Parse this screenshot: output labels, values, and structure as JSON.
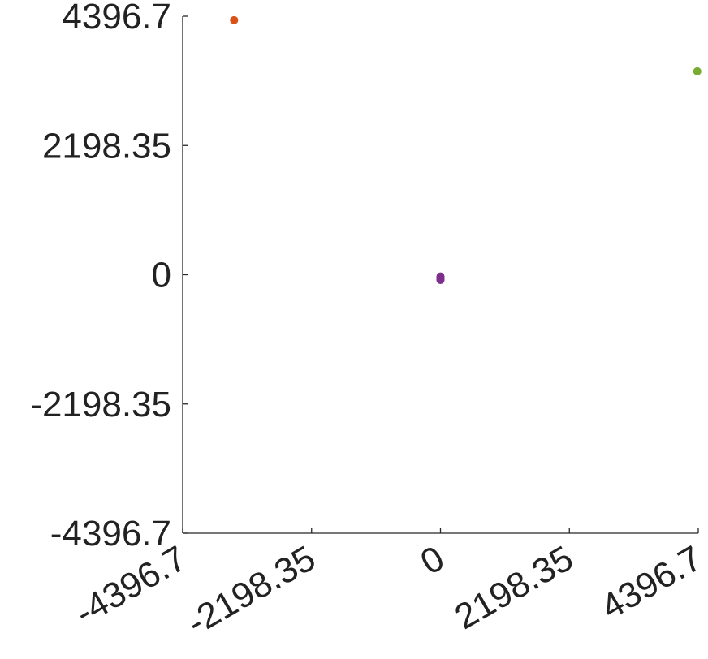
{
  "chart_data": {
    "type": "scatter",
    "title": "",
    "xlabel": "",
    "ylabel": "",
    "xlim": [
      -4396.7,
      4396.7
    ],
    "ylim": [
      -4396.7,
      4396.7
    ],
    "xticks": [
      -4396.7,
      -2198.35,
      0,
      2198.35,
      4396.7
    ],
    "xtick_labels": [
      "-4396.7",
      "-2198.35",
      "0",
      "2198.35",
      "4396.7"
    ],
    "yticks": [
      -4396.7,
      -2198.35,
      0,
      2198.35,
      4396.7
    ],
    "ytick_labels": [
      "-4396.7",
      "-2198.35",
      "0",
      "2198.35",
      "4396.7"
    ],
    "grid": false,
    "legend": "none",
    "series": [
      {
        "color": "#D95319",
        "points": [
          [
            -3520,
            4330
          ]
        ]
      },
      {
        "color": "#77AC30",
        "points": [
          [
            4380,
            3460
          ]
        ]
      },
      {
        "color": "#7E2F8E",
        "points": [
          [
            0,
            -30
          ],
          [
            0,
            -45
          ],
          [
            0,
            -60
          ],
          [
            0,
            -75
          ],
          [
            0,
            -90
          ]
        ]
      }
    ]
  }
}
